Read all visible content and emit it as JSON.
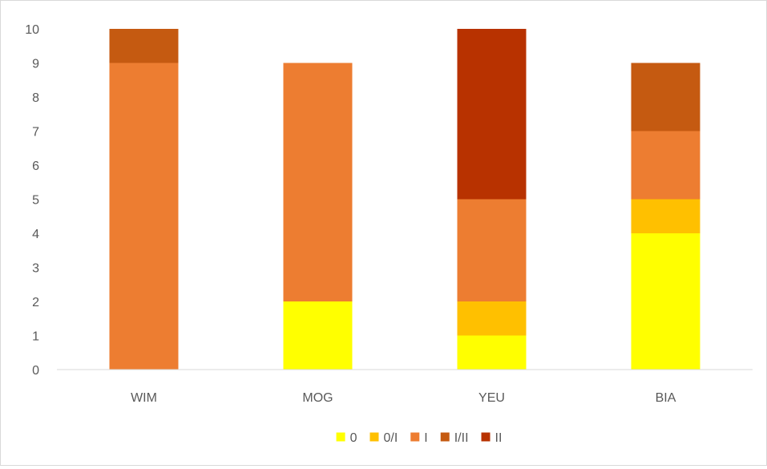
{
  "chart_data": {
    "type": "bar",
    "stacked": true,
    "categories": [
      "WIM",
      "MOG",
      "YEU",
      "BIA"
    ],
    "series": [
      {
        "name": "0",
        "color": "#FFFF00",
        "values": [
          0,
          2,
          1,
          4
        ]
      },
      {
        "name": "0/I",
        "color": "#FFC000",
        "values": [
          0,
          0,
          1,
          1
        ]
      },
      {
        "name": "I",
        "color": "#ED7D31",
        "values": [
          9,
          7,
          3,
          2
        ]
      },
      {
        "name": "I/II",
        "color": "#C55A11",
        "values": [
          1,
          0,
          0,
          2
        ]
      },
      {
        "name": "II",
        "color": "#B83200",
        "values": [
          0,
          0,
          5,
          0
        ]
      }
    ],
    "ylim": [
      0,
      10
    ],
    "yticks": [
      "0",
      "1",
      "2",
      "3",
      "4",
      "5",
      "6",
      "7",
      "8",
      "9",
      "10"
    ],
    "grid": false,
    "legend_position": "bottom",
    "title": "",
    "xlabel": "",
    "ylabel": ""
  }
}
